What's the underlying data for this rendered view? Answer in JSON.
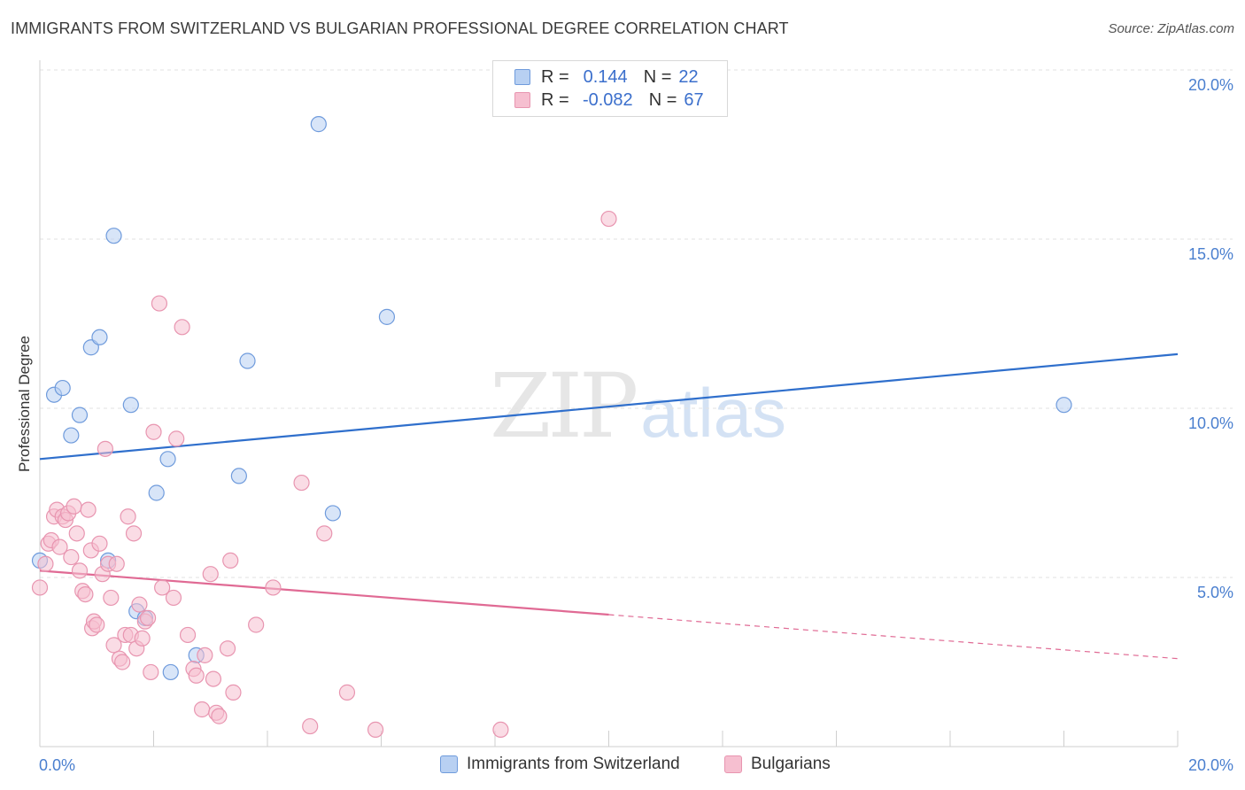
{
  "title": "IMMIGRANTS FROM SWITZERLAND VS BULGARIAN PROFESSIONAL DEGREE CORRELATION CHART",
  "source": "Source: ZipAtlas.com",
  "watermark": {
    "zip": "ZIP",
    "atlas": "atlas"
  },
  "legend_top": [
    {
      "r_label": "R =",
      "r_value": "0.144",
      "n_label": "N =",
      "n_value": "22"
    },
    {
      "r_label": "R =",
      "r_value": "-0.082",
      "n_label": "N =",
      "n_value": "67"
    }
  ],
  "legend_bottom": [
    {
      "label": "Immigrants from Switzerland"
    },
    {
      "label": "Bulgarians"
    }
  ],
  "colors": {
    "blue_fill": "#b8d0f2",
    "blue_stroke": "#6f9bdc",
    "blue_line": "#2f6fcc",
    "pink_fill": "#f6bfd0",
    "pink_stroke": "#e895b0",
    "pink_line": "#e06a94",
    "grid": "#e2e2e2",
    "tick_text": "#4a7fcf"
  },
  "chart_data": {
    "type": "scatter",
    "title": "IMMIGRANTS FROM SWITZERLAND VS BULGARIAN PROFESSIONAL DEGREE CORRELATION CHART",
    "xlabel": "",
    "ylabel": "Professional Degree",
    "xlim": [
      0,
      20
    ],
    "ylim": [
      0,
      20
    ],
    "x_tick_labels": [
      "0.0%",
      "20.0%"
    ],
    "y_tick_labels": [
      "5.0%",
      "10.0%",
      "15.0%",
      "20.0%"
    ],
    "y_tick_values": [
      5,
      10,
      15,
      20
    ],
    "series": [
      {
        "name": "Immigrants from Switzerland",
        "color": "blue",
        "trend": {
          "x0": 0,
          "y0": 8.5,
          "x1": 20,
          "y1": 11.6,
          "dashed_from": null
        },
        "points": [
          [
            0.0,
            5.5
          ],
          [
            0.25,
            10.4
          ],
          [
            0.4,
            10.6
          ],
          [
            0.55,
            9.2
          ],
          [
            0.7,
            9.8
          ],
          [
            0.9,
            11.8
          ],
          [
            1.05,
            12.1
          ],
          [
            1.3,
            15.1
          ],
          [
            1.6,
            10.1
          ],
          [
            2.05,
            7.5
          ],
          [
            2.25,
            8.5
          ],
          [
            1.2,
            5.5
          ],
          [
            1.7,
            4.0
          ],
          [
            1.85,
            3.8
          ],
          [
            2.3,
            2.2
          ],
          [
            2.75,
            2.7
          ],
          [
            3.5,
            8.0
          ],
          [
            3.65,
            11.4
          ],
          [
            5.15,
            6.9
          ],
          [
            6.1,
            12.7
          ],
          [
            4.9,
            18.4
          ],
          [
            18.0,
            10.1
          ]
        ]
      },
      {
        "name": "Bulgarians",
        "color": "pink",
        "trend": {
          "x0": 0,
          "y0": 5.2,
          "x1": 20,
          "y1": 2.6,
          "dashed_from": 10
        },
        "points": [
          [
            0.0,
            4.7
          ],
          [
            0.1,
            5.4
          ],
          [
            0.15,
            6.0
          ],
          [
            0.2,
            6.1
          ],
          [
            0.25,
            6.8
          ],
          [
            0.3,
            7.0
          ],
          [
            0.35,
            5.9
          ],
          [
            0.4,
            6.8
          ],
          [
            0.45,
            6.7
          ],
          [
            0.5,
            6.9
          ],
          [
            0.55,
            5.6
          ],
          [
            0.6,
            7.1
          ],
          [
            0.65,
            6.3
          ],
          [
            0.7,
            5.2
          ],
          [
            0.75,
            4.6
          ],
          [
            0.8,
            4.5
          ],
          [
            0.85,
            7.0
          ],
          [
            0.9,
            5.8
          ],
          [
            0.92,
            3.5
          ],
          [
            0.95,
            3.7
          ],
          [
            1.0,
            3.6
          ],
          [
            1.05,
            6.0
          ],
          [
            1.1,
            5.1
          ],
          [
            1.15,
            8.8
          ],
          [
            1.2,
            5.4
          ],
          [
            1.25,
            4.4
          ],
          [
            1.3,
            3.0
          ],
          [
            1.35,
            5.4
          ],
          [
            1.4,
            2.6
          ],
          [
            1.45,
            2.5
          ],
          [
            1.5,
            3.3
          ],
          [
            1.55,
            6.8
          ],
          [
            1.6,
            3.3
          ],
          [
            1.65,
            6.3
          ],
          [
            1.7,
            2.9
          ],
          [
            1.75,
            4.2
          ],
          [
            1.8,
            3.2
          ],
          [
            1.85,
            3.7
          ],
          [
            1.9,
            3.8
          ],
          [
            1.95,
            2.2
          ],
          [
            2.0,
            9.3
          ],
          [
            2.1,
            13.1
          ],
          [
            2.15,
            4.7
          ],
          [
            2.35,
            4.4
          ],
          [
            2.4,
            9.1
          ],
          [
            2.5,
            12.4
          ],
          [
            2.6,
            3.3
          ],
          [
            2.7,
            2.3
          ],
          [
            2.75,
            2.1
          ],
          [
            2.85,
            1.1
          ],
          [
            2.9,
            2.7
          ],
          [
            3.0,
            5.1
          ],
          [
            3.05,
            2.0
          ],
          [
            3.1,
            1.0
          ],
          [
            3.15,
            0.9
          ],
          [
            3.3,
            2.9
          ],
          [
            3.35,
            5.5
          ],
          [
            3.4,
            1.6
          ],
          [
            3.8,
            3.6
          ],
          [
            4.1,
            4.7
          ],
          [
            4.6,
            7.8
          ],
          [
            4.75,
            0.6
          ],
          [
            5.0,
            6.3
          ],
          [
            5.4,
            1.6
          ],
          [
            5.9,
            0.5
          ],
          [
            8.1,
            0.5
          ],
          [
            10.0,
            15.6
          ]
        ]
      }
    ]
  }
}
